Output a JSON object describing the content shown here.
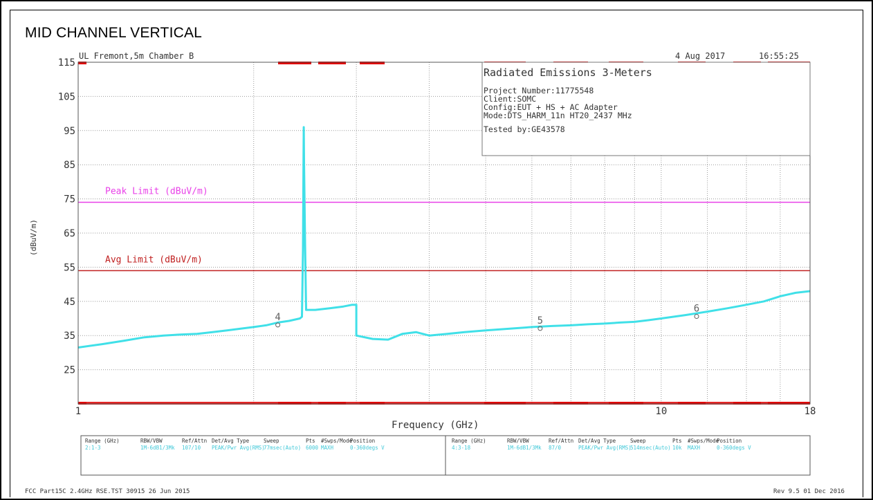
{
  "page_title": "MID CHANNEL VERTICAL",
  "header": {
    "lab": "UL Fremont,5m Chamber B",
    "date": "4 Aug 2017",
    "time": "16:55:25"
  },
  "info_box": {
    "title": "Radiated Emissions 3-Meters",
    "lines": [
      "Project Number:11775548",
      "Client:SOMC",
      "Config:EUT + HS + AC Adapter",
      "Mode:DTS_HARM_11n HT20_2437 MHz",
      "Tested by:GE43578"
    ]
  },
  "footer": {
    "left": "FCC Part15C 2.4GHz RSE.TST 30915 26 Jun 2015",
    "right": "Rev 9.5 01 Dec 2016"
  },
  "settings_table": {
    "columns": [
      "Range (GHz)",
      "RBW/VBW",
      "Ref/Attn",
      "Det/Avg Type",
      "Sweep",
      "Pts",
      "#Swps/Mode",
      "Position"
    ],
    "rows": [
      [
        "2:1-3",
        "1M-6dB1/3Mk",
        "107/10",
        "PEAK/Pwr Avg(RMS)",
        "77msec(Auto)",
        "6000",
        "MAXH",
        "0-360degs V"
      ],
      [
        "4:3-18",
        "1M-6dB1/3Mk",
        "87/0",
        "PEAK/Pwr Avg(RMS)",
        "514msec(Auto)",
        "10k",
        "MAXH",
        "0-360degs V"
      ]
    ]
  },
  "colors": {
    "trace": "#40e0e8",
    "peak_limit": "#e840e8",
    "avg_limit": "#c02020",
    "marker": "#606060",
    "top_bottom_bars": "#e00000",
    "grid": "#999999"
  },
  "chart_data": {
    "type": "line",
    "title": "Radiated Emissions 3-Meters",
    "xlabel": "Frequency (GHz)",
    "ylabel": "(dBuV/m)",
    "x_scale": "log",
    "xlim": [
      1,
      18
    ],
    "ylim": [
      15,
      115
    ],
    "y_ticks": [
      115,
      105,
      95,
      85,
      75,
      65,
      55,
      45,
      35,
      25
    ],
    "x_tick_labels": [
      {
        "value": 1,
        "label": "1"
      },
      {
        "value": 10,
        "label": "10"
      },
      {
        "value": 18,
        "label": "18"
      }
    ],
    "limits": [
      {
        "name": "Peak Limit (dBuV/m)",
        "value": 74
      },
      {
        "name": "Avg Limit (dBuV/m)",
        "value": 54
      }
    ],
    "series": [
      {
        "points": [
          [
            1.0,
            31.5
          ],
          [
            1.1,
            32.5
          ],
          [
            1.2,
            33.5
          ],
          [
            1.3,
            34.5
          ],
          [
            1.4,
            35.0
          ],
          [
            1.5,
            35.3
          ],
          [
            1.6,
            35.5
          ],
          [
            1.7,
            36.0
          ],
          [
            1.8,
            36.5
          ],
          [
            1.9,
            37.0
          ],
          [
            2.0,
            37.5
          ],
          [
            2.1,
            38.0
          ],
          [
            2.2,
            38.8
          ],
          [
            2.3,
            39.3
          ],
          [
            2.4,
            40.0
          ],
          [
            2.42,
            40.5
          ],
          [
            2.43,
            60.0
          ],
          [
            2.435,
            88.0
          ],
          [
            2.437,
            96.0
          ],
          [
            2.44,
            86.0
          ],
          [
            2.45,
            62.0
          ],
          [
            2.46,
            42.5
          ],
          [
            2.55,
            42.5
          ],
          [
            2.7,
            43.0
          ],
          [
            2.85,
            43.5
          ],
          [
            2.95,
            44.0
          ],
          [
            3.0,
            44.0
          ],
          [
            3.0,
            35.0
          ],
          [
            3.2,
            34.0
          ],
          [
            3.4,
            33.8
          ],
          [
            3.6,
            35.5
          ],
          [
            3.8,
            36.0
          ],
          [
            4.0,
            35.0
          ],
          [
            4.3,
            35.5
          ],
          [
            4.6,
            36.0
          ],
          [
            5.0,
            36.5
          ],
          [
            5.5,
            37.0
          ],
          [
            6.0,
            37.5
          ],
          [
            6.5,
            37.8
          ],
          [
            7.0,
            38.0
          ],
          [
            7.5,
            38.3
          ],
          [
            8.0,
            38.5
          ],
          [
            8.5,
            38.8
          ],
          [
            9.0,
            39.0
          ],
          [
            9.5,
            39.5
          ],
          [
            10.0,
            40.0
          ],
          [
            10.5,
            40.5
          ],
          [
            11.0,
            41.0
          ],
          [
            12.0,
            42.0
          ],
          [
            13.0,
            43.0
          ],
          [
            14.0,
            44.0
          ],
          [
            15.0,
            45.0
          ],
          [
            16.0,
            46.5
          ],
          [
            17.0,
            47.5
          ],
          [
            18.0,
            48.0
          ]
        ]
      }
    ],
    "markers": [
      {
        "label": "4",
        "x": 2.2,
        "y": 38.5
      },
      {
        "label": "5",
        "x": 6.2,
        "y": 37.5
      },
      {
        "label": "6",
        "x": 11.5,
        "y": 41.0
      }
    ]
  }
}
